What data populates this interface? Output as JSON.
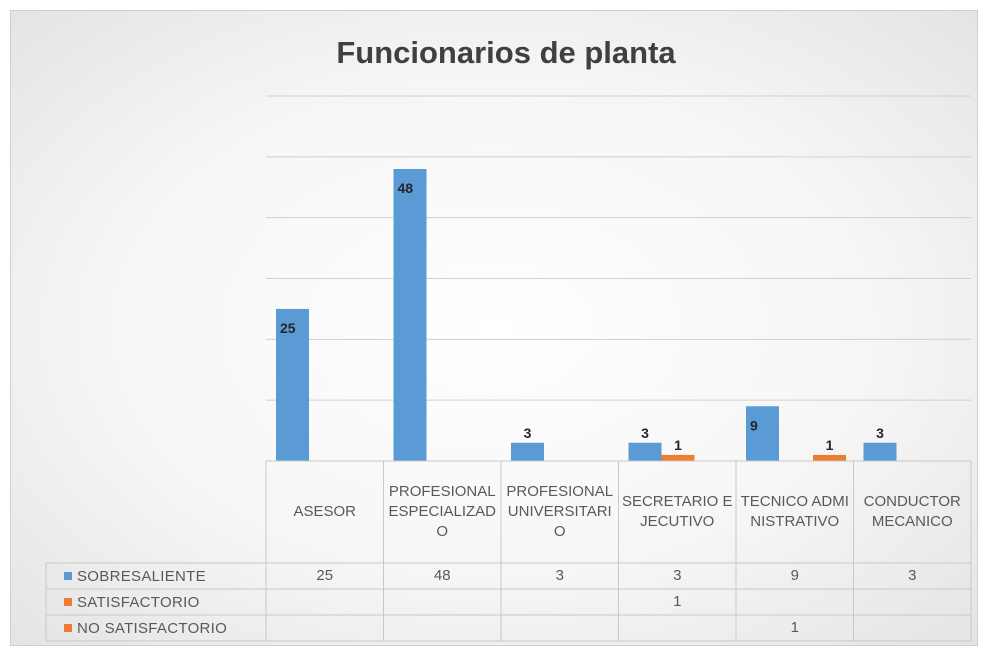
{
  "chart_data": {
    "type": "bar",
    "title": "Funcionarios de planta",
    "categories": [
      "ASESOR",
      "PROFESIONAL ESPECIALIZADO",
      "PROFESIONAL UNIVERSITARIO",
      "SECRETARIO EJECUTIVO",
      "TECNICO ADMINISTRATIVO",
      "CONDUCTOR MECANICO"
    ],
    "series": [
      {
        "name": "SOBRESALIENTE",
        "color": "#5b9bd5",
        "values": [
          25,
          48,
          3,
          3,
          9,
          3
        ]
      },
      {
        "name": "SATISFACTORIO",
        "color": "#ed7d31",
        "values": [
          null,
          null,
          null,
          1,
          null,
          null
        ]
      },
      {
        "name": "NO SATISFACTORIO",
        "color": "#ed7d31",
        "values": [
          null,
          null,
          null,
          null,
          1,
          null
        ]
      }
    ],
    "ylim": [
      0,
      60
    ],
    "yticks": [
      0,
      10,
      20,
      30,
      40,
      50,
      60
    ],
    "grid": true
  }
}
